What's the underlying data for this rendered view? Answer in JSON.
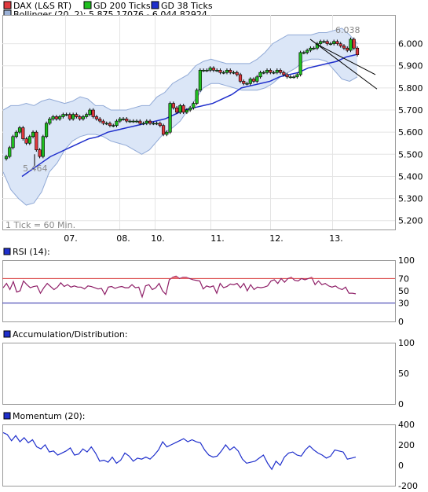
{
  "legend": [
    {
      "label": "DAX (L&S RT)",
      "color": "#e0393e"
    },
    {
      "label": "GD 200 Ticks",
      "color": "#1fbf1f"
    },
    {
      "label": "GD 38 Ticks",
      "color": "#1f2fcc"
    }
  ],
  "bollinger_label": "Bollinger (20, 2): 5.875,17076 - 6.044,82924",
  "tick_note": "1 Tick = 60 Min.",
  "price_annotations": {
    "high": "6.038",
    "low": "5.464"
  },
  "x_labels": [
    "07.",
    "08.",
    "10.",
    "11.",
    "12.",
    "13."
  ],
  "price_ticks": [
    "6.000",
    "5.900",
    "5.800",
    "5.700",
    "5.600",
    "5.500",
    "5.400",
    "5.300",
    "5.200"
  ],
  "rsi": {
    "title": "RSI (14):",
    "ticks": [
      "100",
      "70",
      "50",
      "30",
      "0"
    ]
  },
  "ad": {
    "title": "Accumulation/Distribution:",
    "ticks": [
      "100",
      "50",
      "0"
    ]
  },
  "momentum": {
    "title": "Momentum (20):",
    "ticks": [
      "400",
      "200",
      "0",
      "-200"
    ]
  },
  "chart_data": {
    "type": "candlestick",
    "ylim": [
      5.16,
      6.13
    ],
    "x_categories": [
      "07.",
      "08.",
      "10.",
      "11.",
      "12.",
      "13."
    ],
    "price_close": [
      5.49,
      5.53,
      5.58,
      5.6,
      5.62,
      5.57,
      5.55,
      5.58,
      5.6,
      5.52,
      5.49,
      5.58,
      5.64,
      5.66,
      5.67,
      5.66,
      5.67,
      5.68,
      5.68,
      5.66,
      5.68,
      5.67,
      5.66,
      5.67,
      5.68,
      5.7,
      5.67,
      5.66,
      5.65,
      5.64,
      5.64,
      5.63,
      5.63,
      5.65,
      5.66,
      5.66,
      5.65,
      5.65,
      5.65,
      5.65,
      5.64,
      5.64,
      5.65,
      5.64,
      5.64,
      5.64,
      5.63,
      5.59,
      5.6,
      5.73,
      5.71,
      5.69,
      5.72,
      5.69,
      5.7,
      5.71,
      5.73,
      5.79,
      5.88,
      5.88,
      5.88,
      5.89,
      5.88,
      5.88,
      5.87,
      5.87,
      5.88,
      5.87,
      5.87,
      5.86,
      5.83,
      5.82,
      5.82,
      5.84,
      5.83,
      5.85,
      5.87,
      5.87,
      5.88,
      5.87,
      5.87,
      5.88,
      5.87,
      5.86,
      5.85,
      5.85,
      5.85,
      5.86,
      5.96,
      5.96,
      5.97,
      5.98,
      5.98,
      6.0,
      6.01,
      6.01,
      6.0,
      6.0,
      6.01,
      6.0,
      5.99,
      5.98,
      5.97,
      6.02,
      5.98,
      5.95
    ],
    "bollinger_upper": [
      5.7,
      5.72,
      5.72,
      5.73,
      5.72,
      5.74,
      5.75,
      5.74,
      5.73,
      5.74,
      5.76,
      5.75,
      5.72,
      5.72,
      5.7,
      5.7,
      5.7,
      5.71,
      5.72,
      5.72,
      5.76,
      5.78,
      5.82,
      5.84,
      5.86,
      5.9,
      5.92,
      5.93,
      5.92,
      5.91,
      5.91,
      5.91,
      5.91,
      5.93,
      5.96,
      6.0,
      6.02,
      6.04,
      6.04,
      6.04,
      6.04,
      6.05,
      6.05,
      6.06,
      6.07,
      6.04,
      6.0
    ],
    "bollinger_lower": [
      5.42,
      5.34,
      5.3,
      5.27,
      5.28,
      5.33,
      5.42,
      5.46,
      5.52,
      5.56,
      5.58,
      5.59,
      5.59,
      5.58,
      5.56,
      5.55,
      5.54,
      5.52,
      5.5,
      5.52,
      5.56,
      5.6,
      5.62,
      5.65,
      5.7,
      5.75,
      5.8,
      5.82,
      5.82,
      5.81,
      5.8,
      5.79,
      5.79,
      5.79,
      5.8,
      5.82,
      5.85,
      5.87,
      5.89,
      5.92,
      5.93,
      5.93,
      5.92,
      5.88,
      5.84,
      5.83,
      5.85
    ],
    "gd38": [
      5.4,
      5.43,
      5.46,
      5.49,
      5.51,
      5.53,
      5.55,
      5.57,
      5.58,
      5.6,
      5.61,
      5.62,
      5.63,
      5.64,
      5.65,
      5.66,
      5.68,
      5.7,
      5.71,
      5.72,
      5.73,
      5.75,
      5.77,
      5.8,
      5.81,
      5.82,
      5.83,
      5.85,
      5.86,
      5.87,
      5.89,
      5.9,
      5.91,
      5.92,
      5.94,
      5.95
    ],
    "rsi_ylim": [
      0,
      100
    ],
    "rsi_levels": [
      70,
      30
    ],
    "rsi": [
      55,
      62,
      52,
      65,
      48,
      50,
      66,
      60,
      55,
      57,
      58,
      46,
      55,
      62,
      57,
      52,
      56,
      63,
      57,
      60,
      56,
      58,
      56,
      56,
      53,
      58,
      57,
      55,
      53,
      54,
      44,
      56,
      57,
      54,
      56,
      57,
      55,
      55,
      60,
      55,
      56,
      40,
      58,
      60,
      52,
      55,
      62,
      50,
      44,
      68,
      72,
      74,
      70,
      72,
      72,
      70,
      68,
      67,
      66,
      53,
      58,
      56,
      58,
      46,
      62,
      55,
      57,
      61,
      60,
      62,
      55,
      62,
      50,
      60,
      52,
      56,
      55,
      56,
      58,
      66,
      68,
      62,
      70,
      64,
      70,
      72,
      67,
      66,
      70,
      68,
      70,
      72,
      60,
      66,
      60,
      62,
      58,
      56,
      58,
      54,
      52,
      56,
      46,
      46,
      45
    ],
    "ad_ylim": [
      0,
      100
    ],
    "ad": [],
    "momentum_ylim": [
      -200,
      400
    ],
    "momentum": [
      320,
      300,
      240,
      290,
      230,
      270,
      220,
      250,
      180,
      160,
      200,
      130,
      140,
      100,
      120,
      140,
      170,
      100,
      110,
      160,
      130,
      180,
      120,
      40,
      50,
      30,
      80,
      20,
      50,
      120,
      90,
      40,
      70,
      60,
      80,
      60,
      100,
      150,
      230,
      180,
      200,
      220,
      240,
      260,
      230,
      250,
      230,
      220,
      150,
      100,
      80,
      90,
      140,
      200,
      150,
      180,
      140,
      60,
      20,
      30,
      40,
      70,
      100,
      20,
      -40,
      40,
      0,
      80,
      120,
      130,
      100,
      90,
      150,
      190,
      150,
      120,
      100,
      70,
      90,
      150,
      140,
      130,
      60,
      70,
      80
    ]
  }
}
